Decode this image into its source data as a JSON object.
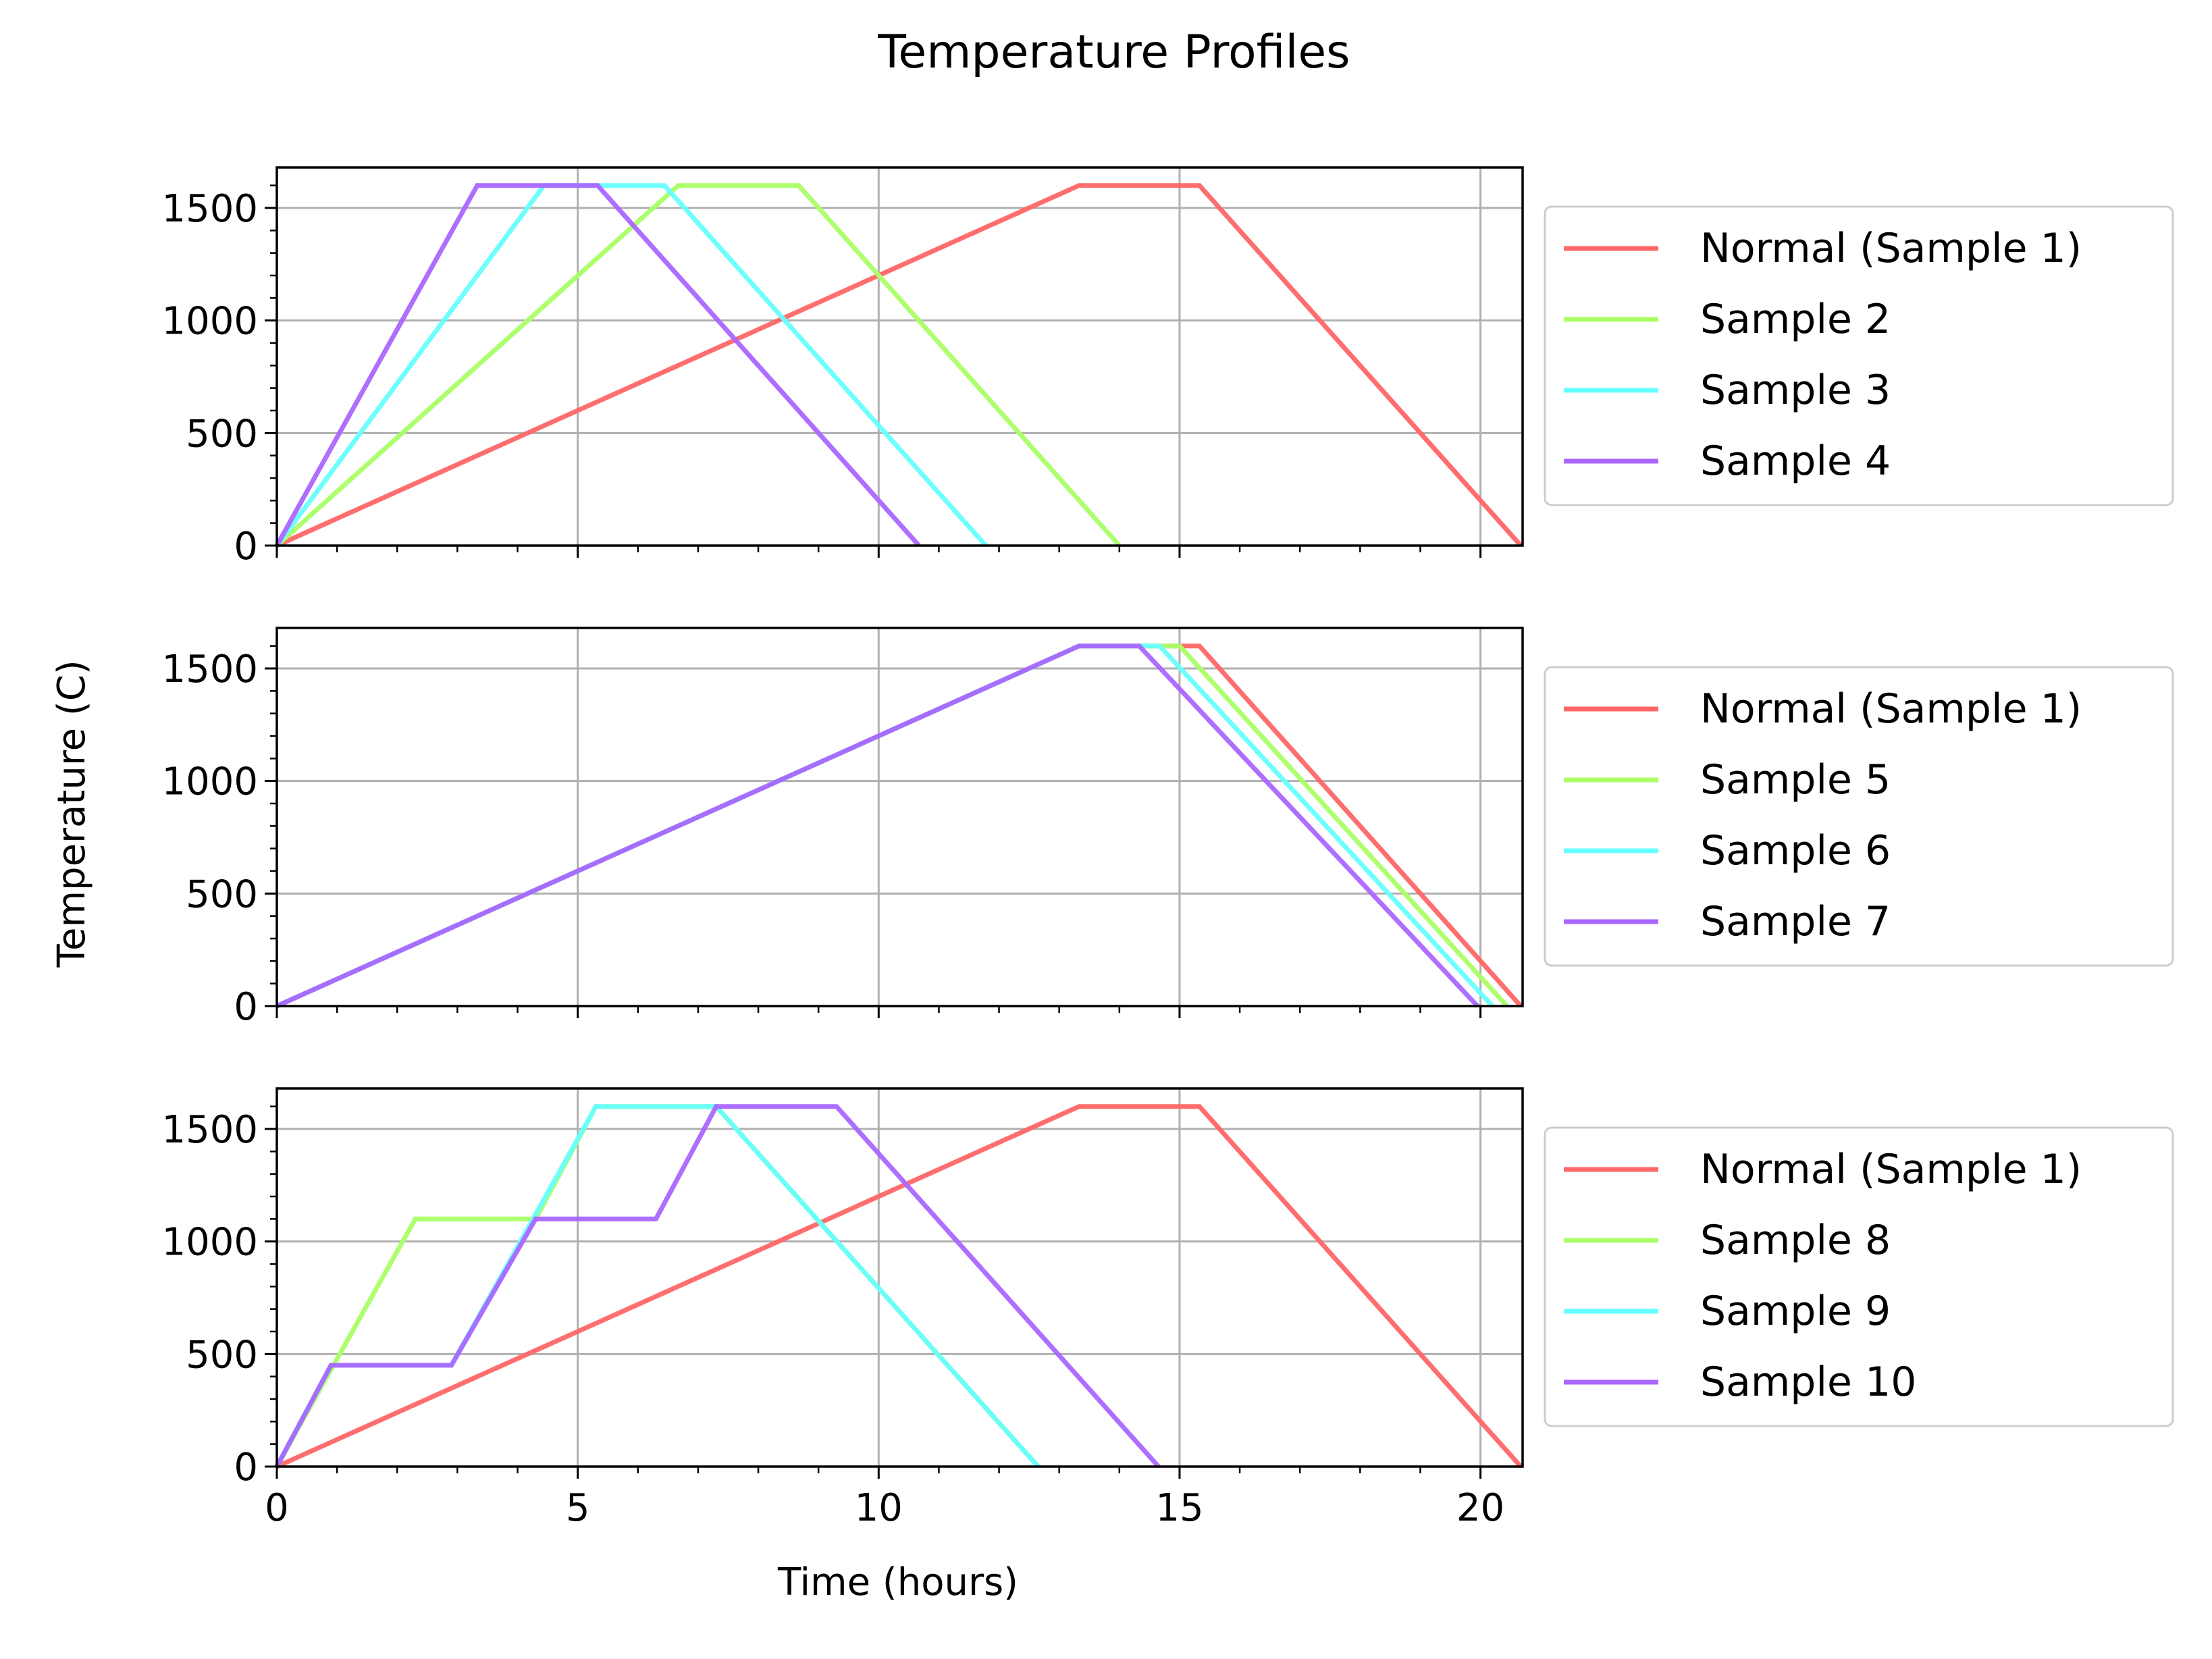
{
  "figure": {
    "title": "Temperature Profiles",
    "xlabel": "Time (hours)",
    "ylabel": "Temperature (C)"
  },
  "chart_data": [
    {
      "type": "line",
      "xlim": [
        0,
        20.7
      ],
      "ylim": [
        0,
        1680
      ],
      "xticks": [
        0,
        5,
        10,
        15,
        20
      ],
      "yticks": [
        0,
        500,
        1000,
        1500
      ],
      "grid": true,
      "legend_position": "right",
      "series": [
        {
          "name": "Normal (Sample 1)",
          "color": "#ff6666",
          "x": [
            0,
            13.33,
            15.33,
            20.67
          ],
          "y": [
            0,
            1600,
            1600,
            0
          ]
        },
        {
          "name": "Sample 2",
          "color": "#aaff66",
          "x": [
            0,
            6.67,
            8.67,
            14.0
          ],
          "y": [
            0,
            1600,
            1600,
            0
          ]
        },
        {
          "name": "Sample 3",
          "color": "#66ffff",
          "x": [
            0,
            4.44,
            6.44,
            11.78
          ],
          "y": [
            0,
            1600,
            1600,
            0
          ]
        },
        {
          "name": "Sample 4",
          "color": "#aa66ff",
          "x": [
            0,
            3.33,
            5.33,
            10.67
          ],
          "y": [
            0,
            1600,
            1600,
            0
          ]
        }
      ]
    },
    {
      "type": "line",
      "xlim": [
        0,
        20.7
      ],
      "ylim": [
        0,
        1680
      ],
      "xticks": [
        0,
        5,
        10,
        15,
        20
      ],
      "yticks": [
        0,
        500,
        1000,
        1500
      ],
      "grid": true,
      "legend_position": "right",
      "series": [
        {
          "name": "Normal (Sample 1)",
          "color": "#ff6666",
          "x": [
            0,
            13.33,
            15.33,
            20.67
          ],
          "y": [
            0,
            1600,
            1600,
            0
          ]
        },
        {
          "name": "Sample 5",
          "color": "#aaff66",
          "x": [
            0,
            13.33,
            15.0,
            20.44
          ],
          "y": [
            0,
            1600,
            1600,
            0
          ]
        },
        {
          "name": "Sample 6",
          "color": "#66ffff",
          "x": [
            0,
            13.33,
            14.67,
            20.2
          ],
          "y": [
            0,
            1600,
            1600,
            0
          ]
        },
        {
          "name": "Sample 7",
          "color": "#aa66ff",
          "x": [
            0,
            13.33,
            14.33,
            19.95
          ],
          "y": [
            0,
            1600,
            1600,
            0
          ]
        }
      ]
    },
    {
      "type": "line",
      "xlim": [
        0,
        20.7
      ],
      "ylim": [
        0,
        1680
      ],
      "xticks": [
        0,
        5,
        10,
        15,
        20
      ],
      "yticks": [
        0,
        500,
        1000,
        1500
      ],
      "grid": true,
      "legend_position": "right",
      "series": [
        {
          "name": "Normal (Sample 1)",
          "color": "#ff6666",
          "x": [
            0,
            13.33,
            15.33,
            20.67
          ],
          "y": [
            0,
            1600,
            1600,
            0
          ]
        },
        {
          "name": "Sample 8",
          "color": "#aaff66",
          "x": [
            0,
            2.3,
            4.3,
            5.3,
            7.3,
            12.65
          ],
          "y": [
            0,
            1100,
            1100,
            1600,
            1600,
            0
          ]
        },
        {
          "name": "Sample 9",
          "color": "#66ffff",
          "x": [
            0,
            0.9,
            2.9,
            5.3,
            7.3,
            12.65
          ],
          "y": [
            0,
            450,
            450,
            1600,
            1600,
            0
          ]
        },
        {
          "name": "Sample 10",
          "color": "#aa66ff",
          "x": [
            0,
            0.9,
            2.9,
            4.3,
            6.3,
            7.3,
            9.3,
            14.65
          ],
          "y": [
            0,
            450,
            450,
            1100,
            1100,
            1600,
            1600,
            0
          ]
        }
      ]
    }
  ]
}
